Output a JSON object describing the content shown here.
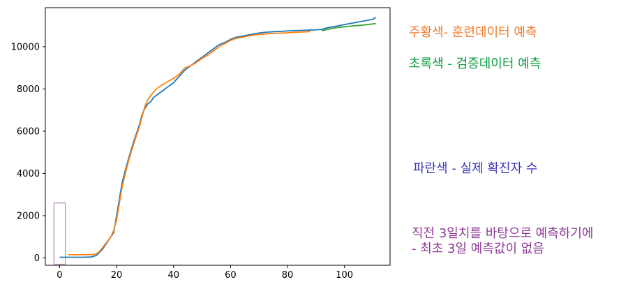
{
  "chart_data": {
    "type": "line",
    "xlim": [
      -5,
      116
    ],
    "ylim": [
      -350,
      11850
    ],
    "xticks": [
      0,
      20,
      40,
      60,
      80,
      100
    ],
    "yticks": [
      0,
      2000,
      4000,
      6000,
      8000,
      10000
    ],
    "grid": false,
    "series": [
      {
        "color": "#1f77b4",
        "x": [
          0,
          4,
          8,
          11,
          13,
          15,
          17,
          19,
          20,
          21,
          22,
          24,
          26,
          28,
          29,
          30,
          31,
          32,
          33,
          34,
          36,
          38,
          40,
          42,
          44,
          46,
          48,
          50,
          52,
          54,
          56,
          58,
          60,
          62,
          64,
          66,
          68,
          70,
          72,
          74,
          76,
          78,
          80,
          82,
          84,
          86,
          88,
          90,
          92,
          94,
          96,
          98,
          100,
          102,
          104,
          106,
          108,
          110,
          111
        ],
        "y": [
          30,
          30,
          30,
          40,
          120,
          400,
          800,
          1200,
          2000,
          2800,
          3600,
          4600,
          5500,
          6300,
          6800,
          7100,
          7300,
          7400,
          7600,
          7700,
          7900,
          8100,
          8300,
          8600,
          8900,
          9100,
          9300,
          9500,
          9700,
          9900,
          10100,
          10200,
          10350,
          10450,
          10500,
          10550,
          10600,
          10650,
          10680,
          10700,
          10720,
          10730,
          10750,
          10760,
          10770,
          10780,
          10790,
          10800,
          10820,
          10900,
          10950,
          11000,
          11050,
          11100,
          11150,
          11200,
          11250,
          11300,
          11400
        ]
      },
      {
        "color": "#ff7f0e",
        "x": [
          3,
          6,
          9,
          12,
          13,
          14,
          16,
          18,
          19,
          20,
          21,
          22,
          24,
          26,
          28,
          29,
          30,
          31,
          32,
          34,
          36,
          38,
          40,
          42,
          44,
          46,
          48,
          50,
          52,
          54,
          56,
          58,
          60,
          62,
          64,
          66,
          68,
          70,
          72,
          74,
          76,
          78,
          80,
          82,
          84,
          86,
          88
        ],
        "y": [
          150,
          150,
          150,
          160,
          200,
          300,
          650,
          1000,
          1300,
          1800,
          2600,
          3400,
          4500,
          5400,
          6200,
          6700,
          7200,
          7500,
          7700,
          8000,
          8200,
          8350,
          8500,
          8700,
          9000,
          9100,
          9250,
          9450,
          9600,
          9800,
          10000,
          10150,
          10300,
          10400,
          10450,
          10500,
          10550,
          10580,
          10600,
          10620,
          10640,
          10650,
          10660,
          10680,
          10690,
          10700,
          10720
        ]
      },
      {
        "color": "#2ca02c",
        "x": [
          92,
          94,
          96,
          98,
          100,
          102,
          104,
          106,
          108,
          110,
          111
        ],
        "y": [
          10760,
          10820,
          10880,
          10920,
          10940,
          10970,
          11000,
          11020,
          11050,
          11080,
          11100
        ]
      }
    ],
    "annotations": [
      {
        "text": "주황색- 훈련데이터 예측",
        "color": "#f17a2b"
      },
      {
        "text": "초록색 - 검증데이터 예측",
        "color": "#0a9b3e"
      },
      {
        "text": "파란색 - 실제 확진자 수",
        "color": "#3a37b8"
      },
      {
        "text": "직전 3일치를 바탕으로 예측하기에\n- 최초 3일 예측값이 없음",
        "color": "#8e3a96"
      }
    ],
    "highlight_box": {
      "x0": -2,
      "x1": 2,
      "y0": -300,
      "y1": 2600,
      "color": "#c084c8"
    }
  }
}
